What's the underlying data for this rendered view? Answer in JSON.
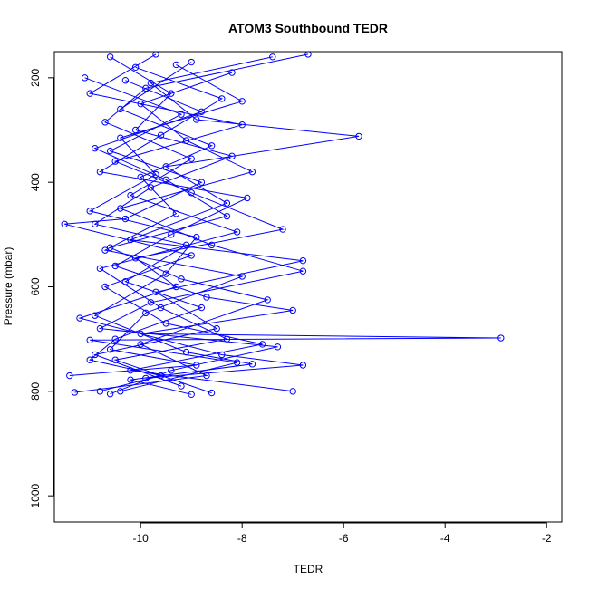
{
  "chart_data": {
    "type": "line",
    "title": "ATOM3 Southbound TEDR",
    "xlabel": "TEDR",
    "ylabel": "Pressure (mbar)",
    "xlim": [
      -11.7,
      -1.7
    ],
    "ylim": [
      1050,
      150
    ],
    "y_reversed": true,
    "x_ticks": [
      -10,
      -8,
      -6,
      -4,
      -2
    ],
    "x_tick_labels": [
      "-10",
      "-8",
      "-6",
      "-4",
      "-2"
    ],
    "y_ticks": [
      200,
      400,
      600,
      800,
      1000
    ],
    "y_tick_labels": [
      "200",
      "400",
      "600",
      "800",
      "1000"
    ],
    "grid": false,
    "marker": "open-circle",
    "color": "#0000ff",
    "series": [
      {
        "values": [
          {
            "x": -10.6,
            "y": 160
          },
          {
            "x": -9.4,
            "y": 230
          },
          {
            "x": -10.1,
            "y": 300
          },
          {
            "x": -8.2,
            "y": 350
          },
          {
            "x": -9.8,
            "y": 410
          },
          {
            "x": -10.9,
            "y": 480
          },
          {
            "x": -9.1,
            "y": 520
          },
          {
            "x": -10.3,
            "y": 590
          },
          {
            "x": -8.8,
            "y": 640
          },
          {
            "x": -10.5,
            "y": 700
          },
          {
            "x": -11.0,
            "y": 740
          },
          {
            "x": -9.6,
            "y": 770
          },
          {
            "x": -10.8,
            "y": 800
          }
        ]
      },
      {
        "values": [
          {
            "x": -9.0,
            "y": 170
          },
          {
            "x": -10.4,
            "y": 260
          },
          {
            "x": -8.6,
            "y": 330
          },
          {
            "x": -10.0,
            "y": 390
          },
          {
            "x": -9.3,
            "y": 460
          },
          {
            "x": -10.7,
            "y": 530
          },
          {
            "x": -8.0,
            "y": 580
          },
          {
            "x": -9.9,
            "y": 650
          },
          {
            "x": -10.6,
            "y": 720
          },
          {
            "x": -8.9,
            "y": 750
          },
          {
            "x": -11.4,
            "y": 770
          }
        ]
      },
      {
        "values": [
          {
            "x": -7.4,
            "y": 160
          },
          {
            "x": -9.8,
            "y": 210
          },
          {
            "x": -8.9,
            "y": 280
          },
          {
            "x": -5.7,
            "y": 312
          },
          {
            "x": -9.5,
            "y": 370
          },
          {
            "x": -8.3,
            "y": 440
          },
          {
            "x": -10.2,
            "y": 510
          },
          {
            "x": -6.8,
            "y": 550
          },
          {
            "x": -9.7,
            "y": 610
          },
          {
            "x": -8.5,
            "y": 680
          },
          {
            "x": -10.9,
            "y": 730
          },
          {
            "x": -9.2,
            "y": 790
          }
        ]
      },
      {
        "values": [
          {
            "x": -10.1,
            "y": 180
          },
          {
            "x": -8.4,
            "y": 240
          },
          {
            "x": -9.6,
            "y": 310
          },
          {
            "x": -10.8,
            "y": 380
          },
          {
            "x": -7.9,
            "y": 430
          },
          {
            "x": -9.4,
            "y": 500
          },
          {
            "x": -10.5,
            "y": 560
          },
          {
            "x": -8.7,
            "y": 620
          },
          {
            "x": -7.0,
            "y": 645
          },
          {
            "x": -10.0,
            "y": 690
          },
          {
            "x": -2.9,
            "y": 698
          },
          {
            "x": -11.0,
            "y": 702
          },
          {
            "x": -8.1,
            "y": 745
          },
          {
            "x": -10.4,
            "y": 800
          }
        ]
      },
      {
        "values": [
          {
            "x": -11.1,
            "y": 200
          },
          {
            "x": -9.2,
            "y": 270
          },
          {
            "x": -10.6,
            "y": 340
          },
          {
            "x": -8.8,
            "y": 400
          },
          {
            "x": -10.3,
            "y": 470
          },
          {
            "x": -11.5,
            "y": 480
          },
          {
            "x": -9.0,
            "y": 540
          },
          {
            "x": -10.7,
            "y": 600
          },
          {
            "x": -9.5,
            "y": 670
          },
          {
            "x": -7.6,
            "y": 710
          },
          {
            "x": -10.2,
            "y": 760
          },
          {
            "x": -7.0,
            "y": 800
          }
        ]
      },
      {
        "values": [
          {
            "x": -8.2,
            "y": 190
          },
          {
            "x": -10.0,
            "y": 250
          },
          {
            "x": -9.1,
            "y": 320
          },
          {
            "x": -7.8,
            "y": 380
          },
          {
            "x": -10.4,
            "y": 450
          },
          {
            "x": -8.6,
            "y": 520
          },
          {
            "x": -6.8,
            "y": 570
          },
          {
            "x": -9.8,
            "y": 630
          },
          {
            "x": -10.8,
            "y": 680
          },
          {
            "x": -7.3,
            "y": 715
          },
          {
            "x": -9.4,
            "y": 760
          },
          {
            "x": -10.6,
            "y": 805
          }
        ]
      },
      {
        "values": [
          {
            "x": -9.7,
            "y": 155
          },
          {
            "x": -11.0,
            "y": 230
          },
          {
            "x": -8.0,
            "y": 290
          },
          {
            "x": -10.5,
            "y": 360
          },
          {
            "x": -9.0,
            "y": 420
          },
          {
            "x": -7.2,
            "y": 490
          },
          {
            "x": -10.1,
            "y": 545
          },
          {
            "x": -9.3,
            "y": 600
          },
          {
            "x": -11.2,
            "y": 660
          },
          {
            "x": -8.4,
            "y": 730
          },
          {
            "x": -6.8,
            "y": 750
          },
          {
            "x": -9.9,
            "y": 775
          }
        ]
      },
      {
        "values": [
          {
            "x": -10.3,
            "y": 205
          },
          {
            "x": -8.8,
            "y": 265
          },
          {
            "x": -10.9,
            "y": 335
          },
          {
            "x": -9.5,
            "y": 395
          },
          {
            "x": -8.3,
            "y": 465
          },
          {
            "x": -10.6,
            "y": 525
          },
          {
            "x": -9.2,
            "y": 585
          },
          {
            "x": -7.5,
            "y": 625
          },
          {
            "x": -10.0,
            "y": 710
          },
          {
            "x": -8.7,
            "y": 770
          },
          {
            "x": -11.3,
            "y": 802
          }
        ]
      },
      {
        "values": [
          {
            "x": -6.7,
            "y": 155
          },
          {
            "x": -9.9,
            "y": 220
          },
          {
            "x": -10.7,
            "y": 285
          },
          {
            "x": -9.0,
            "y": 355
          },
          {
            "x": -10.2,
            "y": 425
          },
          {
            "x": -8.1,
            "y": 495
          },
          {
            "x": -10.8,
            "y": 565
          },
          {
            "x": -9.6,
            "y": 640
          },
          {
            "x": -8.3,
            "y": 700
          },
          {
            "x": -10.5,
            "y": 740
          },
          {
            "x": -8.6,
            "y": 803
          }
        ]
      },
      {
        "values": [
          {
            "x": -9.3,
            "y": 175
          },
          {
            "x": -8.0,
            "y": 245
          },
          {
            "x": -10.4,
            "y": 315
          },
          {
            "x": -9.7,
            "y": 385
          },
          {
            "x": -11.0,
            "y": 455
          },
          {
            "x": -8.9,
            "y": 505
          },
          {
            "x": -9.5,
            "y": 575
          },
          {
            "x": -10.9,
            "y": 655
          },
          {
            "x": -9.1,
            "y": 725
          },
          {
            "x": -7.8,
            "y": 748
          },
          {
            "x": -10.2,
            "y": 778
          },
          {
            "x": -9.0,
            "y": 806
          }
        ]
      }
    ]
  }
}
